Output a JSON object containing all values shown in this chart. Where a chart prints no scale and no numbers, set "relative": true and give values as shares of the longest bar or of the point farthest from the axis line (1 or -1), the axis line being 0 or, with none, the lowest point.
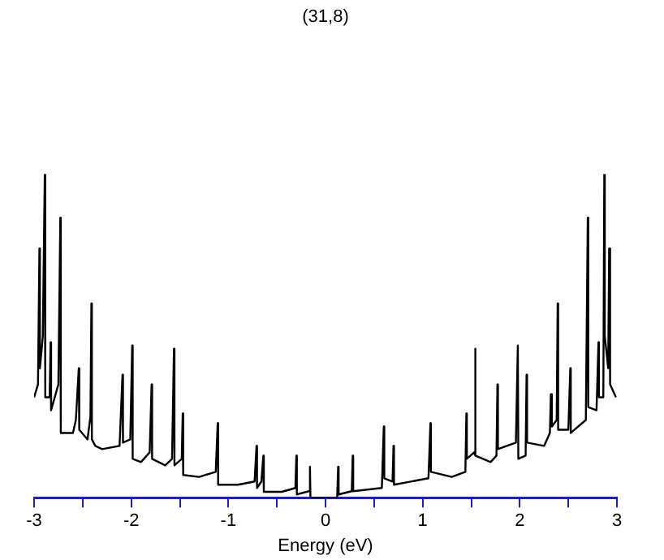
{
  "chart_data": {
    "type": "line",
    "title": "(31,8)",
    "xlabel": "Energy (eV)",
    "relative": true,
    "xlim": [
      -3,
      3
    ],
    "xticks": [
      -3,
      {
        "value": -2.5,
        "label": null
      },
      -2,
      {
        "value": -1.5,
        "label": null
      },
      -1,
      {
        "value": -0.5,
        "label": null
      },
      0,
      {
        "value": 0.5,
        "label": null
      },
      1,
      {
        "value": 1.5,
        "label": null
      },
      2,
      {
        "value": 2.5,
        "label": null
      },
      3
    ],
    "marker": "none",
    "line_style": "solid",
    "grid": false,
    "legend": false,
    "series": [
      {
        "color": "#000000",
        "x": [
          -3.0,
          -2.96,
          -2.945,
          -2.94,
          -2.91,
          -2.89,
          -2.885,
          -2.84,
          -2.83,
          -2.825,
          -2.75,
          -2.73,
          -2.725,
          -2.6,
          -2.57,
          -2.54,
          -2.535,
          -2.45,
          -2.42,
          -2.41,
          -2.405,
          -2.37,
          -2.3,
          -2.12,
          -2.09,
          -2.085,
          -2.01,
          -1.99,
          -1.985,
          -1.9,
          -1.81,
          -1.79,
          -1.785,
          -1.65,
          -1.58,
          -1.56,
          -1.555,
          -1.48,
          -1.47,
          -1.465,
          -1.3,
          -1.13,
          -1.11,
          -1.105,
          -0.9,
          -0.73,
          -0.71,
          -0.705,
          -0.66,
          -0.64,
          -0.635,
          -0.45,
          -0.31,
          -0.3,
          -0.295,
          -0.17,
          -0.16,
          -0.155,
          0.12,
          0.13,
          0.135,
          0.27,
          0.28,
          0.285,
          0.58,
          0.6,
          0.605,
          0.69,
          0.7,
          0.705,
          1.06,
          1.08,
          1.085,
          1.3,
          1.44,
          1.45,
          1.455,
          1.53,
          1.54,
          1.545,
          1.7,
          1.76,
          1.77,
          1.775,
          1.96,
          1.98,
          1.985,
          2.06,
          2.07,
          2.075,
          2.25,
          2.31,
          2.32,
          2.33,
          2.38,
          2.39,
          2.395,
          2.5,
          2.52,
          2.525,
          2.68,
          2.7,
          2.705,
          2.79,
          2.81,
          2.815,
          2.86,
          2.87,
          2.875,
          2.91,
          2.92,
          2.93,
          2.99
        ],
        "values": [
          0.31,
          0.35,
          0.77,
          0.4,
          0.5,
          1.0,
          0.31,
          0.31,
          0.48,
          0.27,
          0.35,
          0.865,
          0.2,
          0.2,
          0.24,
          0.4,
          0.21,
          0.18,
          0.25,
          0.6,
          0.18,
          0.16,
          0.15,
          0.16,
          0.38,
          0.17,
          0.18,
          0.47,
          0.12,
          0.11,
          0.14,
          0.35,
          0.12,
          0.1,
          0.12,
          0.46,
          0.1,
          0.12,
          0.26,
          0.07,
          0.064,
          0.08,
          0.23,
          0.04,
          0.04,
          0.05,
          0.16,
          0.03,
          0.05,
          0.13,
          0.018,
          0.018,
          0.03,
          0.13,
          0.01,
          0.02,
          0.095,
          0,
          0,
          0.095,
          0.01,
          0.02,
          0.13,
          0.02,
          0.03,
          0.22,
          0.06,
          0.05,
          0.16,
          0.04,
          0.06,
          0.23,
          0.08,
          0.064,
          0.08,
          0.26,
          0.12,
          0.14,
          0.46,
          0.13,
          0.11,
          0.13,
          0.35,
          0.15,
          0.17,
          0.47,
          0.12,
          0.13,
          0.38,
          0.17,
          0.16,
          0.2,
          0.32,
          0.22,
          0.24,
          0.6,
          0.21,
          0.21,
          0.4,
          0.2,
          0.24,
          0.865,
          0.28,
          0.27,
          0.48,
          0.31,
          0.31,
          1.0,
          0.5,
          0.4,
          0.77,
          0.35,
          0.31
        ]
      }
    ]
  }
}
